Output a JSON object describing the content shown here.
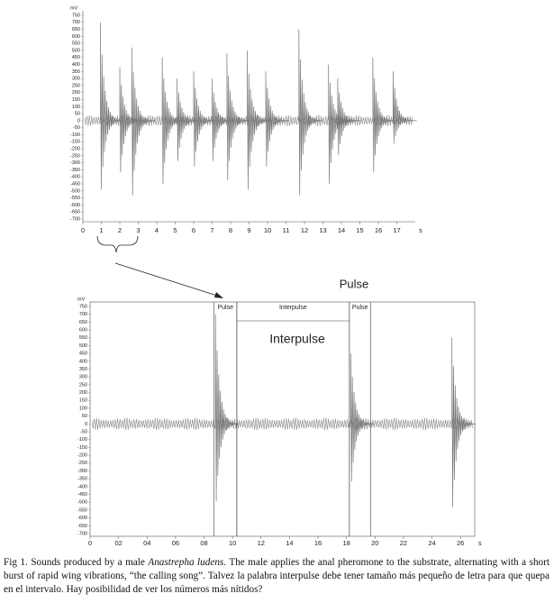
{
  "chart_data": [
    {
      "type": "waveform",
      "y_unit": "mV",
      "x_unit": "s",
      "xlim": [
        0,
        18
      ],
      "ylim": [
        -700,
        750
      ],
      "xticks": [
        0,
        1,
        2,
        3,
        4,
        5,
        6,
        7,
        8,
        9,
        10,
        11,
        12,
        13,
        14,
        15,
        16,
        17
      ],
      "yticks": [
        750,
        700,
        650,
        600,
        550,
        500,
        450,
        400,
        350,
        300,
        250,
        200,
        150,
        100,
        50,
        0,
        -50,
        -100,
        -150,
        -200,
        -250,
        -300,
        -350,
        -400,
        -450,
        -500,
        -550,
        -600,
        -650,
        -700
      ],
      "noise_amplitude": 40,
      "x": [
        0.95,
        2.0,
        2.65,
        4.3,
        5.1,
        6.0,
        7.0,
        7.8,
        8.9,
        9.9,
        11.7,
        13.3,
        13.8,
        15.7,
        16.8
      ],
      "values": [
        700,
        380,
        520,
        450,
        300,
        350,
        300,
        480,
        500,
        350,
        650,
        400,
        300,
        450,
        350
      ],
      "lows": [
        -600,
        -450,
        -650,
        -550,
        -350,
        -400,
        -350,
        -520,
        -600,
        -400,
        -650,
        -550,
        -300,
        -450,
        -200
      ]
    },
    {
      "type": "waveform",
      "y_unit": "mV",
      "x_unit": "s",
      "xlim": [
        0,
        27
      ],
      "ylim": [
        -700,
        750
      ],
      "xticks": [
        0,
        {
          "value": 2,
          "label": "02"
        },
        {
          "value": 4,
          "label": "04"
        },
        {
          "value": 6,
          "label": "06"
        },
        {
          "value": 8,
          "label": "08"
        },
        10,
        12,
        14,
        16,
        18,
        20,
        22,
        24,
        26
      ],
      "yticks": [
        750,
        700,
        650,
        600,
        550,
        500,
        450,
        400,
        350,
        300,
        250,
        200,
        150,
        100,
        50,
        0,
        -50,
        -100,
        -150,
        -200,
        -250,
        -300,
        -350,
        -400,
        -450,
        -500,
        -550,
        -600,
        -650,
        -700
      ],
      "noise_amplitude": 40,
      "x": [
        8.8,
        18.3,
        25.4
      ],
      "values": [
        700,
        450,
        550
      ],
      "lows": [
        -600,
        -450,
        -650
      ],
      "regions": [
        {
          "label": "Pulse",
          "start": 8.7,
          "end": 10.3
        },
        {
          "label": "Interpulse",
          "start": 10.3,
          "end": 18.2
        },
        {
          "label": "Pulse",
          "start": 18.2,
          "end": 19.7
        }
      ],
      "annotations": [
        "Interpulse",
        "Pulse"
      ]
    }
  ],
  "caption": {
    "prefix": "Fig 1. Sounds produced by a male ",
    "species": "Anastrepha ludens",
    "text": ". The male applies the anal pheromone to the substrate, alternating with a short burst of rapid wing vibrations, “the calling song”. Talvez la palabra interpulse debe tener tamaño más pequeño de letra para que quepa en el intervalo. Hay posibilidad de ver los números más nítidos?"
  }
}
